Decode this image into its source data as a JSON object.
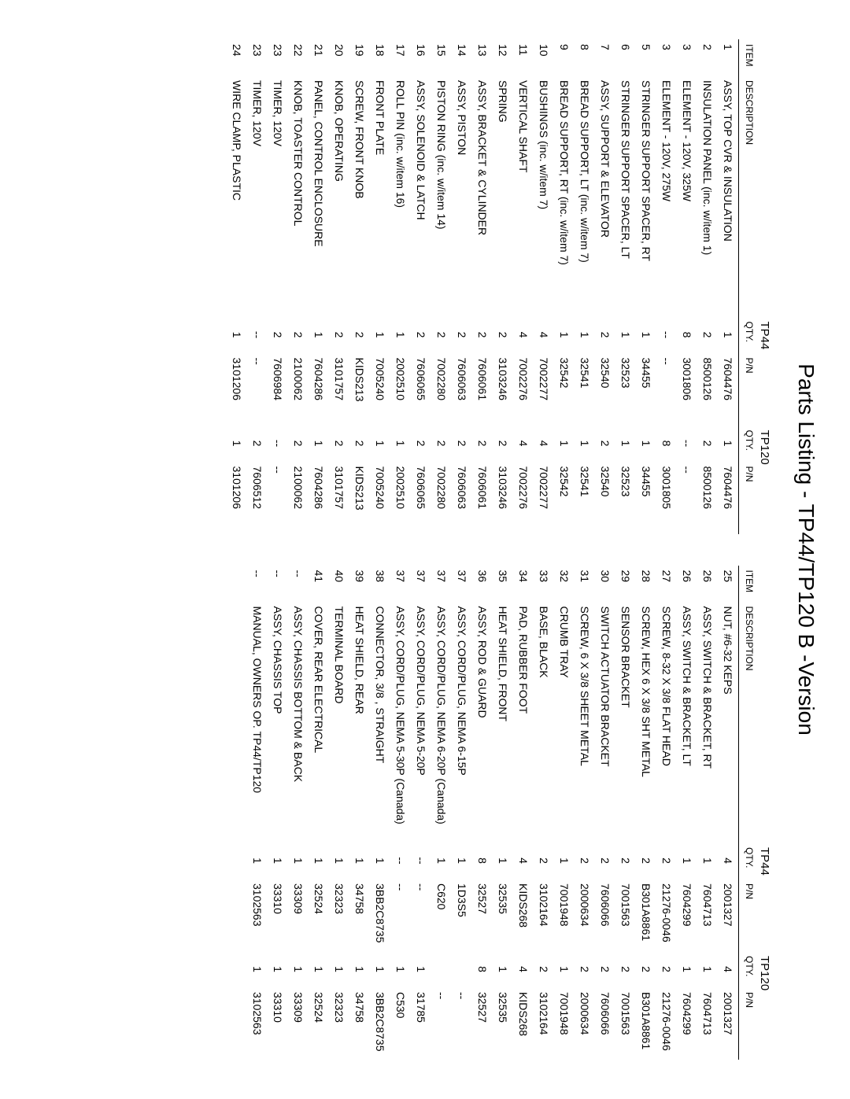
{
  "title": "Parts Listing - TP44/TP120   B -Version",
  "headers": {
    "item": "ITEM",
    "description": "DESCRIPTION",
    "qty": "QTY.",
    "pn": "P/N",
    "model1": "TP44",
    "model2": "TP120"
  },
  "left": [
    {
      "item": "1",
      "desc": "ASSY, TOP CVR & INSULATION",
      "q1": "1",
      "p1": "7604476",
      "q2": "1",
      "p2": "7604476"
    },
    {
      "item": "2",
      "desc": "INSULATION PANEL (inc. w/item 1)",
      "q1": "2",
      "p1": "8500126",
      "q2": "2",
      "p2": "8500126"
    },
    {
      "item": "3",
      "desc": "ELEMENT - 120V, 325W",
      "q1": "8",
      "p1": "3001806",
      "q2": "--",
      "p2": "--"
    },
    {
      "item": "3",
      "desc": "ELEMENT - 120V, 275W",
      "q1": "--",
      "p1": "--",
      "q2": "8",
      "p2": "3001805"
    },
    {
      "item": "5",
      "desc": "STRINGER SUPPORT SPACER, RT",
      "q1": "1",
      "p1": "34455",
      "q2": "1",
      "p2": "34455"
    },
    {
      "item": "6",
      "desc": "STRINGER SUPPORT SPACER, LT",
      "q1": "1",
      "p1": "32523",
      "q2": "1",
      "p2": "32523"
    },
    {
      "item": "7",
      "desc": "ASSY, SUPPORT & ELEVATOR",
      "q1": "2",
      "p1": "32540",
      "q2": "2",
      "p2": "32540"
    },
    {
      "item": "8",
      "desc": "BREAD SUPPORT, LT (inc. w/item 7)",
      "q1": "1",
      "p1": "32541",
      "q2": "1",
      "p2": "32541"
    },
    {
      "item": "9",
      "desc": "BREAD SUPPORT, RT (inc. w/item 7)",
      "q1": "1",
      "p1": "32542",
      "q2": "1",
      "p2": "32542"
    },
    {
      "item": "10",
      "desc": "BUSHINGS (inc. w/item 7)",
      "q1": "4",
      "p1": "7002277",
      "q2": "4",
      "p2": "7002277"
    },
    {
      "item": "11",
      "desc": "VERTICAL SHAFT",
      "q1": "4",
      "p1": "7002276",
      "q2": "4",
      "p2": "7002276"
    },
    {
      "item": "12",
      "desc": "SPRING",
      "q1": "2",
      "p1": "3103246",
      "q2": "2",
      "p2": "3103246"
    },
    {
      "item": "13",
      "desc": "ASSY, BRACKET & CYLINDER",
      "q1": "2",
      "p1": "7606061",
      "q2": "2",
      "p2": "7606061"
    },
    {
      "item": "14",
      "desc": "ASSY, PISTON",
      "q1": "2",
      "p1": "7606063",
      "q2": "2",
      "p2": "7606063"
    },
    {
      "item": "15",
      "desc": "   PISTON RING (inc. w/item 14)",
      "q1": "2",
      "p1": "7002280",
      "q2": "2",
      "p2": "7002280"
    },
    {
      "item": "16",
      "desc": "ASSY, SOLENOID & LATCH",
      "q1": "2",
      "p1": "7606065",
      "q2": "2",
      "p2": "7606065"
    },
    {
      "item": "17",
      "desc": "   ROLL PIN (inc. w/item 16)",
      "q1": "1",
      "p1": "2002510",
      "q2": "1",
      "p2": "2002510"
    },
    {
      "item": "18",
      "desc": "FRONT PLATE",
      "q1": "1",
      "p1": "7005240",
      "q2": "1",
      "p2": "7005240"
    },
    {
      "item": "19",
      "desc": "SCREW, FRONT KNOB",
      "q1": "2",
      "p1": "KIDS213",
      "q2": "2",
      "p2": "KIDS213"
    },
    {
      "item": "20",
      "desc": "KNOB, OPERATING",
      "q1": "2",
      "p1": "3101757",
      "q2": "2",
      "p2": "3101757"
    },
    {
      "item": "21",
      "desc": "PANEL, CONTROL ENCLOSURE",
      "q1": "1",
      "p1": "7604286",
      "q2": "1",
      "p2": "7604286"
    },
    {
      "item": "22",
      "desc": "KNOB, TOASTER CONTROL",
      "q1": "2",
      "p1": "2100062",
      "q2": "2",
      "p2": "2100062"
    },
    {
      "item": "23",
      "desc": "TIMER, 120V",
      "q1": "2",
      "p1": "7606984",
      "q2": "--",
      "p2": "--"
    },
    {
      "item": "23",
      "desc": "TIMER, 120V",
      "q1": "--",
      "p1": "--",
      "q2": "2",
      "p2": "7606512"
    },
    {
      "item": "24",
      "desc": "WIRE CLAMP, PLASTIC",
      "q1": "1",
      "p1": "3101206",
      "q2": "1",
      "p2": "3101206"
    }
  ],
  "right": [
    {
      "item": "25",
      "desc": "NUT, #6-32 KEPS",
      "q1": "4",
      "p1": "2001327",
      "q2": "4",
      "p2": "2001327"
    },
    {
      "item": "26",
      "desc": "ASSY, SWITCH & BRACKET, RT",
      "q1": "1",
      "p1": "7604713",
      "q2": "1",
      "p2": "7604713"
    },
    {
      "item": "26",
      "desc": "ASSY, SWITCH & BRACKET, LT",
      "q1": "1",
      "p1": "7604299",
      "q2": "1",
      "p2": "7604299"
    },
    {
      "item": "27",
      "desc": "SCREW, 8-32 X 3/8  FLAT HEAD",
      "q1": "2",
      "p1": "21276-0046",
      "q2": "2",
      "p2": "21276-0046"
    },
    {
      "item": "28",
      "desc": "SCREW, HEX 6 X 3/8   SHT METAL",
      "q1": "2",
      "p1": "B301A8861",
      "q2": "2",
      "p2": "B301A8861"
    },
    {
      "item": "29",
      "desc": "SENSOR BRACKET",
      "q1": "2",
      "p1": "7001563",
      "q2": "2",
      "p2": "7001563"
    },
    {
      "item": "30",
      "desc": "SWITCH ACTUATOR BRACKET",
      "q1": "2",
      "p1": "7606066",
      "q2": "2",
      "p2": "7606066"
    },
    {
      "item": "31",
      "desc": "SCREW, 6 X 3/8  SHEET METAL",
      "q1": "2",
      "p1": "2000634",
      "q2": "2",
      "p2": "2000634"
    },
    {
      "item": "32",
      "desc": "CRUMB TRAY",
      "q1": "1",
      "p1": "7001948",
      "q2": "1",
      "p2": "7001948"
    },
    {
      "item": "33",
      "desc": "BASE, BLACK",
      "q1": "2",
      "p1": "3102164",
      "q2": "2",
      "p2": "3102164"
    },
    {
      "item": "34",
      "desc": "PAD, RUBBER FOOT",
      "q1": "4",
      "p1": "KIDS268",
      "q2": "4",
      "p2": "KIDS268"
    },
    {
      "item": "35",
      "desc": "HEAT SHIELD, FRONT",
      "q1": "1",
      "p1": "32535",
      "q2": "1",
      "p2": "32535"
    },
    {
      "item": "36",
      "desc": "ASSY, ROD & GUARD",
      "q1": "8",
      "p1": "32527",
      "q2": "8",
      "p2": "32527"
    },
    {
      "item": "37",
      "desc": "ASSY, CORD/PLUG, NEMA 6-15P",
      "q1": "1",
      "p1": "1D3S5",
      "q2": "",
      "p2": "--"
    },
    {
      "item": "37",
      "desc": "ASSY, CORD/PLUG, NEMA 6-20P (Canada)",
      "q1": "1",
      "p1": "C620",
      "q2": "",
      "p2": "--"
    },
    {
      "item": "37",
      "desc": "ASSY, CORD/PLUG, NEMA 5-20P",
      "q1": "--",
      "p1": "--",
      "q2": "1",
      "p2": "31785"
    },
    {
      "item": "37",
      "desc": "ASSY, CORD/PLUG, NEMA 5-30P (Canada)",
      "q1": "--",
      "p1": "--",
      "q2": "1",
      "p2": "C530"
    },
    {
      "item": "38",
      "desc": "CONNECTOR, 3/8 , STRAIGHT",
      "q1": "1",
      "p1": "3BB2C8735",
      "q2": "1",
      "p2": "3BB2C8735"
    },
    {
      "item": "39",
      "desc": "HEAT SHIELD, REAR",
      "q1": "1",
      "p1": "34758",
      "q2": "1",
      "p2": "34758"
    },
    {
      "item": "40",
      "desc": "TERMINAL BOARD",
      "q1": "1",
      "p1": "32323",
      "q2": "1",
      "p2": "32323"
    },
    {
      "item": "41",
      "desc": "COVER, REAR ELECTRICAL",
      "q1": "1",
      "p1": "32524",
      "q2": "1",
      "p2": "32524"
    },
    {
      "item": "--",
      "desc": "ASSY, CHASSIS BOTTOM & BACK",
      "q1": "1",
      "p1": "33309",
      "q2": "1",
      "p2": "33309"
    },
    {
      "item": "--",
      "desc": "ASSY, CHASSIS TOP",
      "q1": "1",
      "p1": "33310",
      "q2": "1",
      "p2": "33310"
    },
    {
      "item": "--",
      "desc": "MANUAL, OWNERS OP. TP44/TP120",
      "q1": "1",
      "p1": "3102563",
      "q2": "1",
      "p2": "3102563"
    }
  ]
}
